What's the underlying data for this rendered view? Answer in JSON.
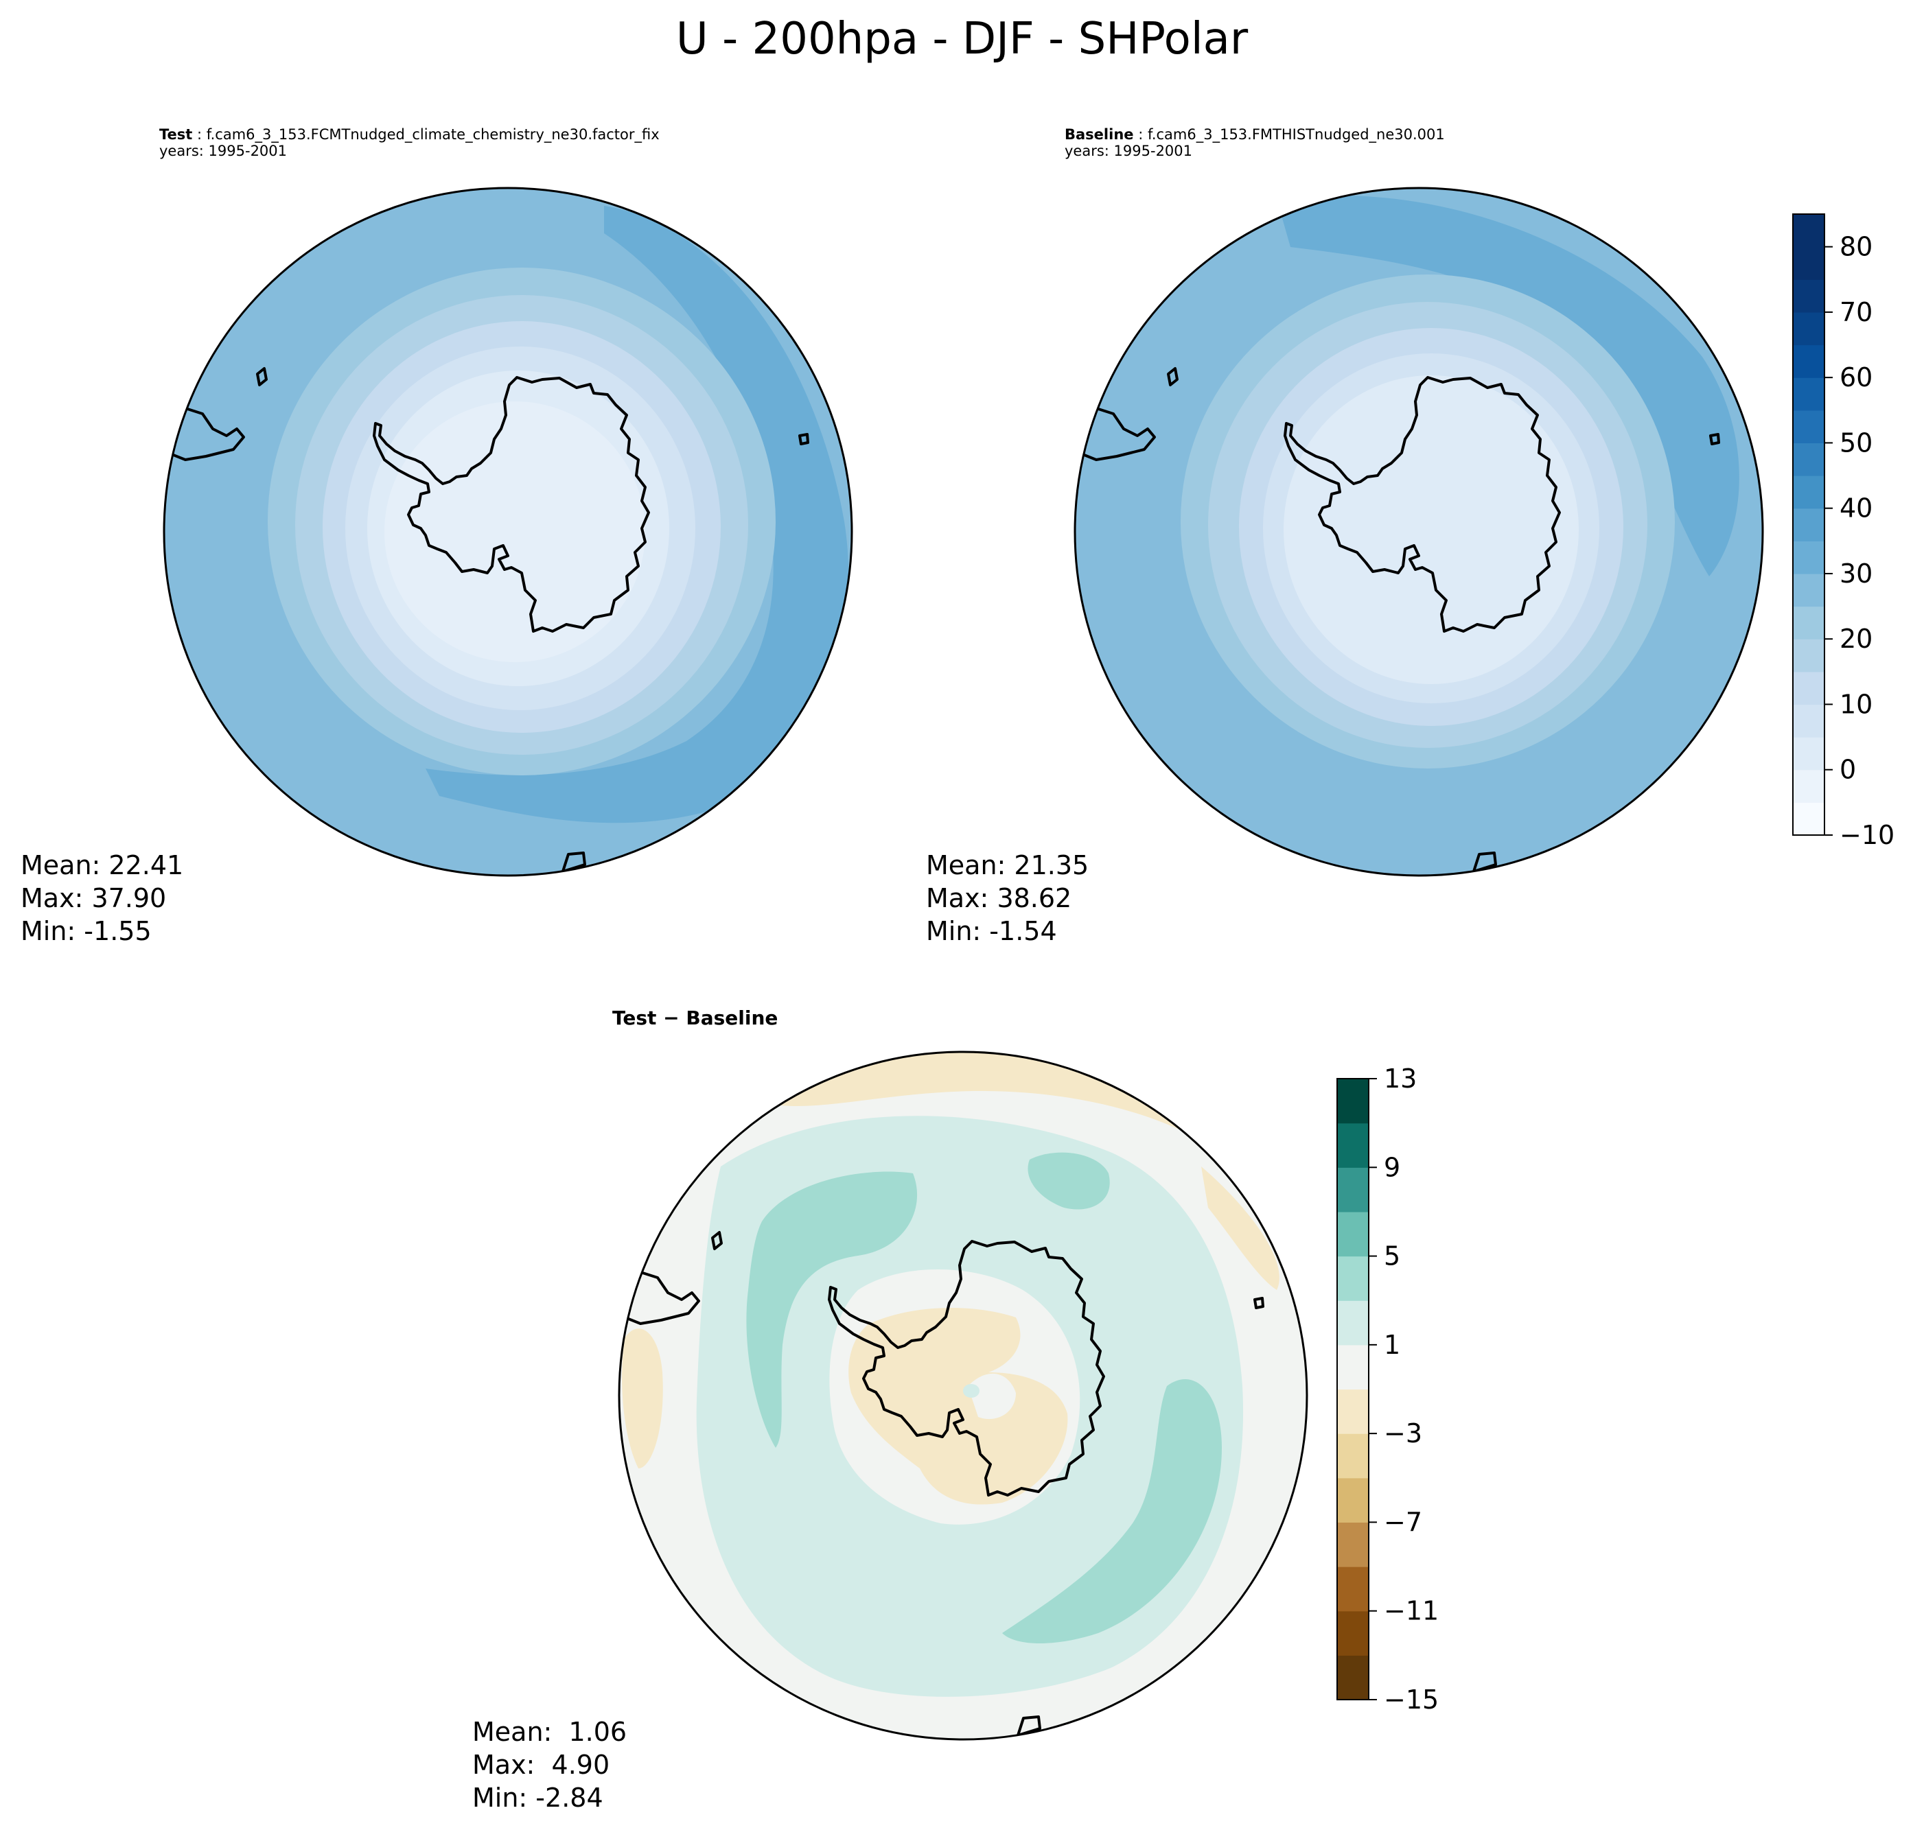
{
  "figure": {
    "title": "U - 200hpa - DJF - SHPolar"
  },
  "panels": {
    "test": {
      "label": "Test",
      "case": "f.cam6_3_153.FCMTnudged_climate_chemistry_ne30.factor_fix",
      "years": "years: 1995-2001",
      "mean": "Mean: 22.41",
      "max": "Max: 37.90",
      "min": "Min: -1.55"
    },
    "baseline": {
      "label": "Baseline",
      "case": "f.cam6_3_153.FMTHISTnudged_ne30.001",
      "years": "years: 1995-2001",
      "mean": "Mean: 21.35",
      "max": "Max: 38.62",
      "min": "Min: -1.54"
    },
    "diff": {
      "title": "Test − Baseline",
      "mean": "Mean:  1.06",
      "max": "Max:  4.90",
      "min": "Min: -2.84"
    }
  },
  "chart_data": [
    {
      "type": "heatmap",
      "panel": "test",
      "projection": "south polar stereographic",
      "colormap": "Blues",
      "color_levels": [
        -10,
        -5,
        0,
        5,
        10,
        15,
        20,
        25,
        30,
        35,
        40,
        45,
        50,
        55,
        60,
        65,
        70,
        75,
        80,
        85
      ],
      "stats": {
        "mean": 22.41,
        "max": 37.9,
        "min": -1.55
      }
    },
    {
      "type": "heatmap",
      "panel": "baseline",
      "projection": "south polar stereographic",
      "colormap": "Blues",
      "color_levels": [
        -10,
        -5,
        0,
        5,
        10,
        15,
        20,
        25,
        30,
        35,
        40,
        45,
        50,
        55,
        60,
        65,
        70,
        75,
        80,
        85
      ],
      "stats": {
        "mean": 21.35,
        "max": 38.62,
        "min": -1.54
      }
    },
    {
      "type": "heatmap",
      "panel": "diff",
      "projection": "south polar stereographic",
      "colormap": "BrBG",
      "color_levels": [
        -15,
        -13,
        -11,
        -9,
        -7,
        -5,
        -3,
        -1,
        1,
        3,
        5,
        7,
        9,
        11,
        13
      ],
      "stats": {
        "mean": 1.06,
        "max": 4.9,
        "min": -2.84
      }
    }
  ],
  "colorbars": {
    "abs": {
      "ticks": [
        "−10",
        "0",
        "10",
        "20",
        "30",
        "40",
        "50",
        "60",
        "70",
        "80"
      ],
      "tick_values": [
        -10,
        0,
        10,
        20,
        30,
        40,
        50,
        60,
        70,
        80
      ],
      "vmin": -10,
      "vmax": 85,
      "colors": [
        "#f7fbff",
        "#ebf3fb",
        "#deebf7",
        "#d2e3f3",
        "#c6dbef",
        "#b1d2e7",
        "#9ecae1",
        "#85bcdc",
        "#6baed6",
        "#58a1cf",
        "#4292c6",
        "#3282be",
        "#2171b5",
        "#1361a9",
        "#08519c",
        "#08458a",
        "#083979",
        "#08306b",
        "#08306b"
      ]
    },
    "diff": {
      "ticks": [
        "−15",
        "−11",
        "−7",
        "−3",
        "1",
        "5",
        "9",
        "13"
      ],
      "tick_values": [
        -15,
        -11,
        -7,
        -3,
        1,
        5,
        9,
        13
      ],
      "vmin": -15,
      "vmax": 13,
      "colors": [
        "#613a0a",
        "#80490c",
        "#a0621f",
        "#bf8c4a",
        "#d9b871",
        "#ebd69f",
        "#f5e8c8",
        "#f2f4f2",
        "#d3ece8",
        "#a2dbd1",
        "#6bbfb3",
        "#35978f",
        "#0d7167",
        "#00493f"
      ]
    }
  },
  "colors": {
    "ring": "#000000",
    "coast": "#000000"
  }
}
